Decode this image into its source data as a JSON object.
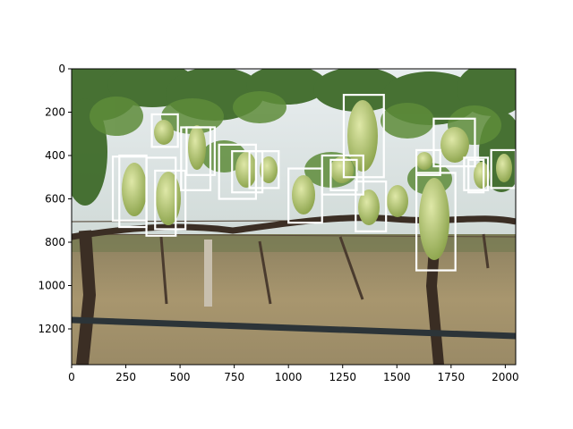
{
  "figure": {
    "image_description": "vineyard photo with grape clusters",
    "x_axis": {
      "min": 0,
      "max": 2048,
      "ticks": [
        0,
        250,
        500,
        750,
        1000,
        1250,
        1500,
        1750,
        2000
      ]
    },
    "y_axis": {
      "min": 0,
      "max": 1365,
      "inverted": true,
      "ticks": [
        0,
        200,
        400,
        600,
        800,
        1000,
        1200
      ]
    },
    "box_color": "#ffffff",
    "boxes": [
      {
        "x1": 370,
        "y1": 210,
        "x2": 490,
        "y2": 360
      },
      {
        "x1": 190,
        "y1": 405,
        "x2": 345,
        "y2": 700
      },
      {
        "x1": 220,
        "y1": 400,
        "x2": 345,
        "y2": 730
      },
      {
        "x1": 345,
        "y1": 410,
        "x2": 480,
        "y2": 770
      },
      {
        "x1": 385,
        "y1": 470,
        "x2": 525,
        "y2": 740
      },
      {
        "x1": 505,
        "y1": 270,
        "x2": 640,
        "y2": 560
      },
      {
        "x1": 530,
        "y1": 270,
        "x2": 660,
        "y2": 490
      },
      {
        "x1": 680,
        "y1": 350,
        "x2": 850,
        "y2": 600
      },
      {
        "x1": 740,
        "y1": 380,
        "x2": 880,
        "y2": 570
      },
      {
        "x1": 820,
        "y1": 380,
        "x2": 955,
        "y2": 550
      },
      {
        "x1": 1000,
        "y1": 460,
        "x2": 1155,
        "y2": 710
      },
      {
        "x1": 1155,
        "y1": 400,
        "x2": 1345,
        "y2": 580
      },
      {
        "x1": 1195,
        "y1": 420,
        "x2": 1315,
        "y2": 560
      },
      {
        "x1": 1255,
        "y1": 120,
        "x2": 1440,
        "y2": 500
      },
      {
        "x1": 1310,
        "y1": 520,
        "x2": 1450,
        "y2": 750
      },
      {
        "x1": 1590,
        "y1": 375,
        "x2": 1700,
        "y2": 490
      },
      {
        "x1": 1590,
        "y1": 480,
        "x2": 1770,
        "y2": 930
      },
      {
        "x1": 1670,
        "y1": 230,
        "x2": 1860,
        "y2": 450
      },
      {
        "x1": 1810,
        "y1": 410,
        "x2": 1920,
        "y2": 560
      },
      {
        "x1": 1830,
        "y1": 420,
        "x2": 1900,
        "y2": 570
      },
      {
        "x1": 1935,
        "y1": 375,
        "x2": 2048,
        "y2": 550
      }
    ]
  }
}
